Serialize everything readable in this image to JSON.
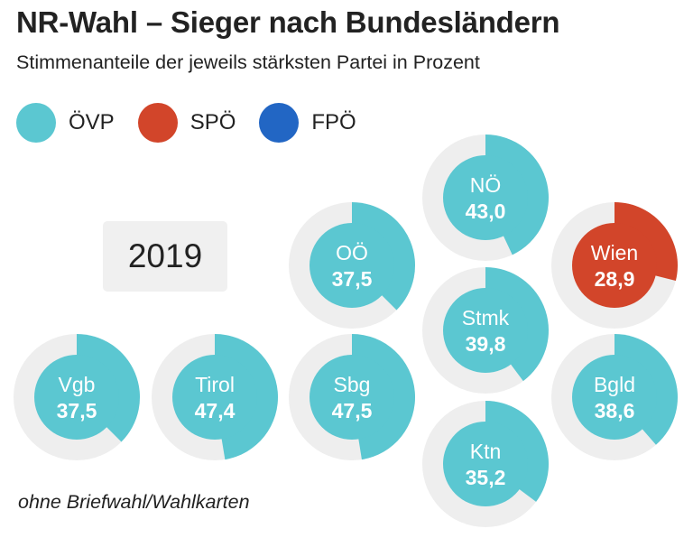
{
  "chart_data": {
    "type": "donut-cartogram",
    "title": "NR-Wahl – Sieger nach Bundesländern",
    "subtitle": "Stimmenanteile der jeweils stärksten Partei in Prozent",
    "year": "2019",
    "footnote": "ohne Briefwahl/Wahlkarten",
    "legend": [
      {
        "name": "ÖVP",
        "color": "#5bc7d1"
      },
      {
        "name": "SPÖ",
        "color": "#d2452a"
      },
      {
        "name": "FPÖ",
        "color": "#2266c4"
      }
    ],
    "colors": {
      "ring_background": "#eeeeee"
    },
    "states": [
      {
        "name": "NÖ",
        "value": 43.0,
        "display": "43,0",
        "party": "ÖVP"
      },
      {
        "name": "OÖ",
        "value": 37.5,
        "display": "37,5",
        "party": "ÖVP"
      },
      {
        "name": "Wien",
        "value": 28.9,
        "display": "28,9",
        "party": "SPÖ"
      },
      {
        "name": "Stmk",
        "value": 39.8,
        "display": "39,8",
        "party": "ÖVP"
      },
      {
        "name": "Vgb",
        "value": 37.5,
        "display": "37,5",
        "party": "ÖVP"
      },
      {
        "name": "Tirol",
        "value": 47.4,
        "display": "47,4",
        "party": "ÖVP"
      },
      {
        "name": "Sbg",
        "value": 47.5,
        "display": "47,5",
        "party": "ÖVP"
      },
      {
        "name": "Bgld",
        "value": 38.6,
        "display": "38,6",
        "party": "ÖVP"
      },
      {
        "name": "Ktn",
        "value": 35.2,
        "display": "35,2",
        "party": "ÖVP"
      }
    ]
  }
}
